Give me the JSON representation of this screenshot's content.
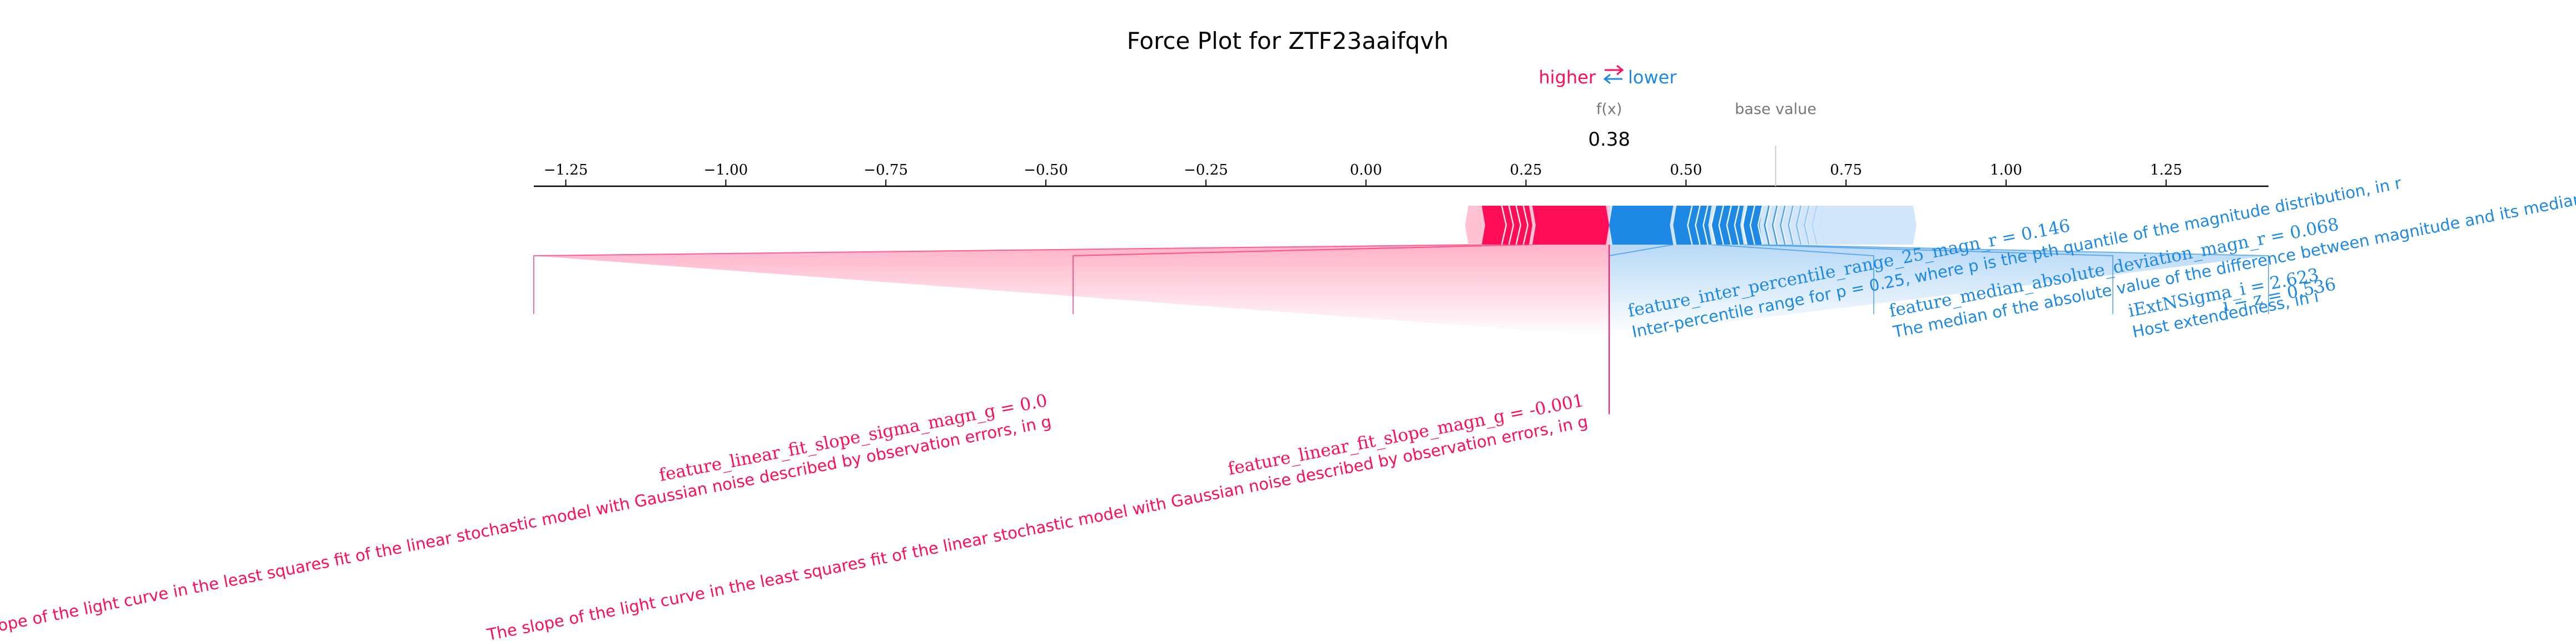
{
  "chart_data": {
    "type": "force",
    "title": "Force Plot for ZTF23aaifqvh",
    "legend": {
      "higher": "higher",
      "lower": "lower"
    },
    "output_label": "f(x)",
    "base_label": "base value",
    "output_value": 0.38,
    "output_value_text": "0.38",
    "base_value": 0.64,
    "xlim": [
      -1.3,
      1.41
    ],
    "ticks": [
      "−1.25",
      "−1.00",
      "−0.75",
      "−0.50",
      "−0.25",
      "0.00",
      "0.25",
      "0.50",
      "0.75",
      "1.00",
      "1.25"
    ],
    "tick_values": [
      -1.25,
      -1.0,
      -0.75,
      -0.5,
      -0.25,
      0.0,
      0.25,
      0.5,
      0.75,
      1.0,
      1.25
    ],
    "colors": {
      "positive": "#ff0d57",
      "negative": "#1e88e5",
      "positive_light": "#ffc3d5",
      "negative_light": "#d1e6fa"
    },
    "labeled_features": [
      {
        "side": "positive",
        "name": "feature_linear_fit_slope_sigma_magn_g",
        "value_text": "0.0",
        "description": "The slope of the light curve in the least squares fit of the linear stochastic model with Gaussian noise described by observation errors, in g",
        "start": 0.181,
        "end": 0.26
      },
      {
        "side": "positive",
        "name": "feature_linear_fit_slope_magn_g",
        "value_text": "-0.001",
        "description": "The slope of the light curve in the least squares fit of the linear stochastic model with Gaussian noise described by observation errors, in g",
        "start": 0.26,
        "end": 0.38
      },
      {
        "side": "negative",
        "name": "feature_inter_percentile_range_25_magn_r",
        "value_text": "0.146",
        "description": "Inter-percentile range for p = 0.25, where p is the pth quantile of the magnitude distribution, in r",
        "start": 0.38,
        "end": 0.48
      },
      {
        "side": "negative",
        "name": "feature_median_absolute_deviation_magn_r",
        "value_text": "0.068",
        "description": "The median of the absolute value of the difference between magnitude and its median, in r",
        "start": 0.48,
        "end": 0.54
      },
      {
        "side": "negative",
        "name": "iExtNSigma_i",
        "value_text": "2.623",
        "description": "Host extendedness, in i",
        "overlap_text": "Host i",
        "start": 0.54,
        "end": 0.59
      },
      {
        "side": "negative",
        "name": "i − z",
        "value_text": "0.536",
        "description": "",
        "start": 0.59,
        "end": 0.62
      }
    ],
    "remaining_effect": {
      "positive_from": 0.16,
      "negative_to": 0.86
    }
  }
}
